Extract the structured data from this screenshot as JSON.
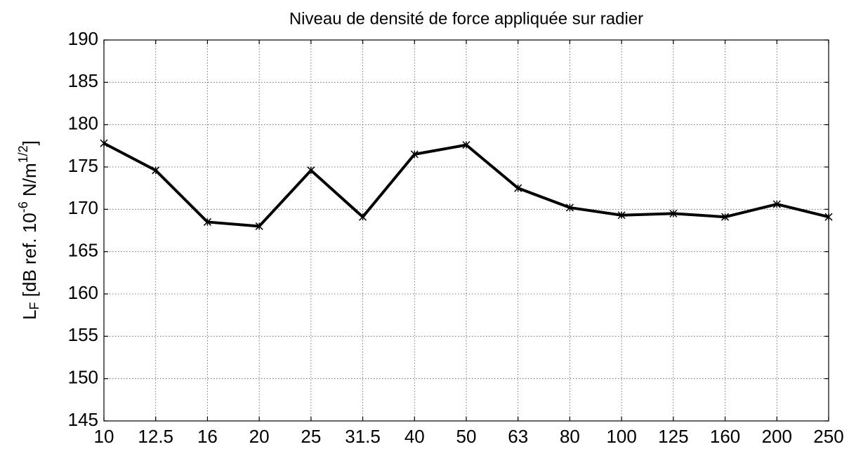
{
  "chart_data": {
    "type": "line",
    "title": "Niveau de densité de force appliquée sur radier",
    "y_label": [
      "L",
      "F",
      " [dB ref. 10",
      "-6",
      " N/m",
      "1/2",
      "]"
    ],
    "categories": [
      "10",
      "12.5",
      "16",
      "20",
      "25",
      "31.5",
      "40",
      "50",
      "63",
      "80",
      "100",
      "125",
      "160",
      "200",
      "250"
    ],
    "series": [
      {
        "color": "#000000",
        "values": [
          177.8,
          174.6,
          168.5,
          168.0,
          174.6,
          169.1,
          176.5,
          177.6,
          172.5,
          170.2,
          169.3,
          169.5,
          169.1,
          170.6,
          169.1
        ]
      }
    ],
    "ylim": [
      145,
      190
    ],
    "yticks": [
      145,
      150,
      155,
      160,
      165,
      170,
      175,
      180,
      185,
      190
    ],
    "grid": true
  }
}
